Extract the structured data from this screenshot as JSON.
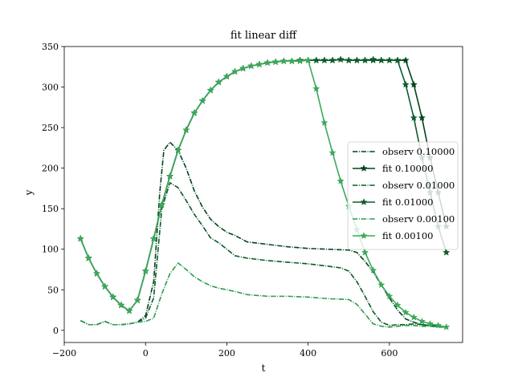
{
  "chart_data": {
    "type": "line",
    "title": "fit linear diff",
    "xlabel": "t",
    "ylabel": "y",
    "xlim": [
      -200,
      780
    ],
    "ylim": [
      -15,
      350
    ],
    "xticks": [
      -200,
      0,
      200,
      400,
      600
    ],
    "xtick_labels": [
      "−200",
      "0",
      "200",
      "400",
      "600"
    ],
    "yticks": [
      0,
      50,
      100,
      150,
      200,
      250,
      300,
      350
    ],
    "ytick_labels": [
      "0",
      "50",
      "100",
      "150",
      "200",
      "250",
      "300",
      "350"
    ],
    "grid": false,
    "legend_position": "center-right",
    "series": [
      {
        "name": "observ 0.10000",
        "style": "dashdot",
        "marker": "none",
        "color": "#00441b",
        "x": [
          -160,
          -140,
          -120,
          -100,
          -80,
          -60,
          -40,
          -20,
          0,
          20,
          35,
          45,
          60,
          80,
          100,
          120,
          140,
          160,
          180,
          200,
          220,
          250,
          300,
          350,
          400,
          450,
          500,
          520,
          540,
          560,
          580,
          600,
          620,
          640,
          660,
          680,
          700,
          720,
          740
        ],
        "y": [
          12,
          7,
          7,
          11,
          7,
          7,
          8,
          10,
          18,
          60,
          170,
          222,
          232,
          222,
          200,
          172,
          152,
          137,
          128,
          121,
          117,
          109,
          106,
          103,
          101,
          100,
          99,
          96,
          85,
          72,
          56,
          40,
          25,
          14,
          10,
          7,
          6,
          5,
          4
        ]
      },
      {
        "name": "fit 0.10000",
        "style": "solid",
        "marker": "star",
        "color": "#00441b",
        "x": [
          -160,
          -140,
          -120,
          -100,
          -80,
          -60,
          -40,
          -20,
          0,
          20,
          40,
          60,
          80,
          100,
          120,
          140,
          160,
          180,
          200,
          220,
          240,
          260,
          280,
          300,
          320,
          340,
          360,
          380,
          400,
          420,
          440,
          460,
          480,
          500,
          520,
          540,
          560,
          580,
          600,
          620,
          640,
          660,
          680,
          700,
          720,
          740
        ],
        "y": [
          113,
          89,
          70,
          54,
          41,
          31,
          24,
          37,
          73,
          113,
          155,
          190,
          222,
          247,
          268,
          283,
          296,
          306,
          313,
          319,
          323,
          326,
          328,
          330,
          331,
          332,
          332,
          333,
          333,
          333,
          333,
          333,
          334,
          333,
          333,
          333,
          334,
          333,
          333,
          333,
          333,
          303,
          262,
          213,
          170,
          128
        ]
      },
      {
        "name": "observ 0.01000",
        "style": "dashdot",
        "marker": "none",
        "color": "#0a5a28",
        "x": [
          -160,
          -140,
          -120,
          -100,
          -80,
          -60,
          -40,
          -20,
          0,
          20,
          40,
          60,
          80,
          100,
          120,
          140,
          160,
          180,
          200,
          220,
          250,
          300,
          350,
          400,
          450,
          480,
          500,
          520,
          540,
          560,
          580,
          600,
          620,
          640,
          660,
          680,
          700,
          720,
          740
        ],
        "y": [
          12,
          7,
          7,
          11,
          7,
          7,
          8,
          10,
          15,
          40,
          150,
          182,
          176,
          160,
          143,
          129,
          114,
          108,
          100,
          92,
          89,
          86,
          84,
          82,
          79,
          77,
          73,
          60,
          42,
          23,
          10,
          6,
          7,
          7,
          8,
          7,
          6,
          5,
          4
        ]
      },
      {
        "name": "fit 0.01000",
        "style": "solid",
        "marker": "star",
        "color": "#0d5c2c",
        "x": [
          -160,
          -140,
          -120,
          -100,
          -80,
          -60,
          -40,
          -20,
          0,
          20,
          40,
          60,
          80,
          100,
          120,
          140,
          160,
          180,
          200,
          220,
          240,
          260,
          280,
          300,
          320,
          340,
          360,
          380,
          400,
          420,
          440,
          460,
          480,
          500,
          520,
          540,
          560,
          580,
          600,
          620,
          640,
          660,
          680,
          700,
          720,
          740
        ],
        "y": [
          113,
          89,
          70,
          54,
          41,
          31,
          24,
          37,
          73,
          113,
          155,
          190,
          222,
          247,
          268,
          283,
          296,
          306,
          313,
          319,
          323,
          326,
          328,
          330,
          331,
          332,
          332,
          333,
          333,
          333,
          333,
          333,
          334,
          333,
          333,
          333,
          333,
          333,
          333,
          333,
          303,
          262,
          213,
          170,
          128,
          96
        ]
      },
      {
        "name": "observ 0.00100",
        "style": "dashdot",
        "marker": "none",
        "color": "#2e9a4e",
        "x": [
          -160,
          -140,
          -120,
          -100,
          -80,
          -60,
          -40,
          -20,
          0,
          20,
          40,
          60,
          80,
          100,
          120,
          140,
          160,
          180,
          200,
          220,
          250,
          300,
          350,
          400,
          450,
          500,
          520,
          540,
          560,
          580,
          600,
          620,
          640,
          660,
          680,
          700,
          720,
          740
        ],
        "y": [
          12,
          7,
          7,
          11,
          7,
          7,
          8,
          10,
          11,
          15,
          45,
          70,
          83,
          75,
          66,
          60,
          55,
          52,
          50,
          48,
          44,
          42,
          42,
          41,
          39,
          38,
          32,
          20,
          8,
          5,
          4,
          5,
          6,
          6,
          5,
          5,
          4,
          4
        ]
      },
      {
        "name": "fit 0.00100",
        "style": "solid",
        "marker": "star",
        "color": "#3ba85a",
        "x": [
          -160,
          -140,
          -120,
          -100,
          -80,
          -60,
          -40,
          -20,
          0,
          20,
          40,
          60,
          80,
          100,
          120,
          140,
          160,
          180,
          200,
          220,
          240,
          260,
          280,
          300,
          320,
          340,
          360,
          380,
          400,
          420,
          440,
          460,
          480,
          500,
          520,
          540,
          560,
          580,
          600,
          620,
          640,
          660,
          680,
          700,
          720,
          740
        ],
        "y": [
          113,
          89,
          70,
          54,
          41,
          31,
          24,
          37,
          73,
          113,
          155,
          190,
          222,
          247,
          268,
          283,
          296,
          306,
          313,
          319,
          323,
          326,
          328,
          330,
          331,
          332,
          332,
          332,
          333,
          298,
          256,
          219,
          184,
          153,
          124,
          96,
          74,
          56,
          42,
          31,
          22,
          16,
          11,
          8,
          6,
          4
        ]
      }
    ]
  }
}
